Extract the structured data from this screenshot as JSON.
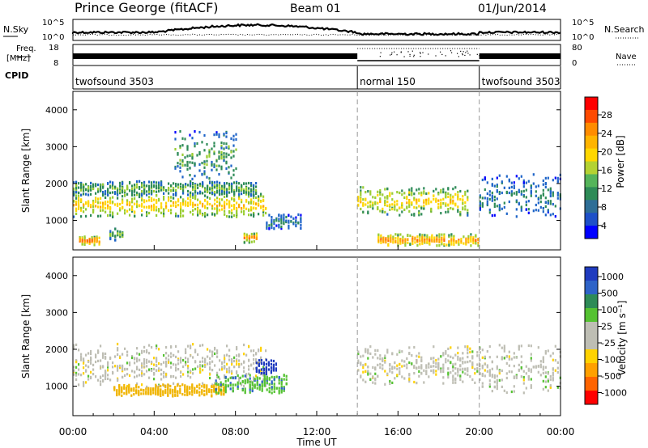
{
  "header": {
    "station": "Prince George (fitACF)",
    "beam": "Beam 01",
    "date": "01/Jun/2014"
  },
  "labels": {
    "nsky": "N.Sky",
    "nsearch": "N.Search",
    "freq_line1": "Freq.",
    "freq_line2": "[MHz]",
    "nave": "Nave",
    "cpid": "CPID"
  },
  "noise_axis": {
    "left_top": "10^5",
    "left_bottom": "10^0",
    "right_top": "10^5",
    "right_bottom": "10^0"
  },
  "freq_axis": {
    "left_top": "18",
    "left_bottom": "8",
    "right_top": "80",
    "right_bottom": "0"
  },
  "cpid_segments": [
    {
      "label": "twofsound 3503",
      "start_hour": 0
    },
    {
      "label": "normal 150",
      "start_hour": 14
    },
    {
      "label": "twofsound 3503",
      "start_hour": 20
    }
  ],
  "x_axis": {
    "label": "Time UT",
    "ticks": [
      "00:00",
      "04:00",
      "08:00",
      "12:00",
      "16:00",
      "20:00",
      "00:00"
    ],
    "range_hours": [
      0,
      24
    ]
  },
  "colorbars": {
    "power": {
      "label": "Power [dB]",
      "ticks": [
        "28",
        "24",
        "20",
        "16",
        "12",
        "8",
        "4"
      ],
      "colors": [
        "#ff0000",
        "#ff6a00",
        "#ffa500",
        "#ffd700",
        "#9acd32",
        "#3cb371",
        "#2e8b57",
        "#1e64c8",
        "#0000ff"
      ]
    },
    "velocity": {
      "label": "Velocity [m s^-1]",
      "ticks": [
        "1000",
        "500",
        "100",
        "25",
        "-25",
        "-100",
        "-500",
        "-1000"
      ],
      "colors": [
        "#1f3bbf",
        "#2e63c8",
        "#2e8b57",
        "#55c232",
        "#bebeb4",
        "#bebeb4",
        "#ffd200",
        "#ffa000",
        "#ff6400",
        "#ff0000"
      ]
    }
  },
  "chart_data": [
    {
      "type": "heatmap",
      "title": "",
      "variable": "Power",
      "unit": "dB",
      "xlabel": "Time UT",
      "ylabel": "Slant Range [km]",
      "xlim_hours": [
        0,
        24
      ],
      "ylim_km": [
        200,
        4500
      ],
      "y_ticks": [
        1000,
        2000,
        3000,
        4000
      ],
      "colorbar_range": [
        0,
        30
      ],
      "features": [
        {
          "t_start": 0.0,
          "t_end": 9.5,
          "range_center_km": 1450,
          "range_halfwidth_km": 250,
          "level": 20
        },
        {
          "t_start": 0.0,
          "t_end": 9.0,
          "range_center_km": 1900,
          "range_halfwidth_km": 150,
          "level": 13
        },
        {
          "t_start": 0.3,
          "t_end": 1.3,
          "range_center_km": 480,
          "range_halfwidth_km": 90,
          "level": 26
        },
        {
          "t_start": 1.8,
          "t_end": 2.4,
          "range_center_km": 650,
          "range_halfwidth_km": 120,
          "level": 14
        },
        {
          "t_start": 8.4,
          "t_end": 9.0,
          "range_center_km": 560,
          "range_halfwidth_km": 100,
          "level": 24
        },
        {
          "t_start": 5.0,
          "t_end": 8.0,
          "range_center_km": 2800,
          "range_halfwidth_km": 500,
          "level": 12
        },
        {
          "t_start": 9.5,
          "t_end": 11.2,
          "range_center_km": 1000,
          "range_halfwidth_km": 150,
          "level": 9
        },
        {
          "t_start": 14.0,
          "t_end": 19.5,
          "range_center_km": 1550,
          "range_halfwidth_km": 300,
          "level": 19
        },
        {
          "t_start": 15.0,
          "t_end": 20.0,
          "range_center_km": 500,
          "range_halfwidth_km": 120,
          "level": 24
        },
        {
          "t_start": 20.0,
          "t_end": 24.0,
          "range_center_km": 1700,
          "range_halfwidth_km": 450,
          "level": 9
        }
      ]
    },
    {
      "type": "heatmap",
      "title": "",
      "variable": "Velocity",
      "unit": "m s^-1",
      "xlabel": "Time UT",
      "ylabel": "Slant Range [km]",
      "xlim_hours": [
        0,
        24
      ],
      "ylim_km": [
        200,
        4500
      ],
      "y_ticks": [
        1000,
        2000,
        3000,
        4000
      ],
      "colorbar_range": [
        -1000,
        1000
      ],
      "features": [
        {
          "t_start": 0.0,
          "t_end": 9.5,
          "range_center_km": 1600,
          "range_halfwidth_km": 450,
          "velocity": 0
        },
        {
          "t_start": 2.0,
          "t_end": 7.5,
          "range_center_km": 920,
          "range_halfwidth_km": 120,
          "velocity": -300
        },
        {
          "t_start": 7.0,
          "t_end": 10.5,
          "range_center_km": 1100,
          "range_halfwidth_km": 200,
          "velocity": 80
        },
        {
          "t_start": 9.0,
          "t_end": 10.0,
          "range_center_km": 1550,
          "range_halfwidth_km": 150,
          "velocity": 700
        },
        {
          "t_start": 14.0,
          "t_end": 20.0,
          "range_center_km": 1600,
          "range_halfwidth_km": 400,
          "velocity": 0
        },
        {
          "t_start": 20.0,
          "t_end": 24.0,
          "range_center_km": 1500,
          "range_halfwidth_km": 500,
          "velocity": 0
        }
      ]
    }
  ]
}
